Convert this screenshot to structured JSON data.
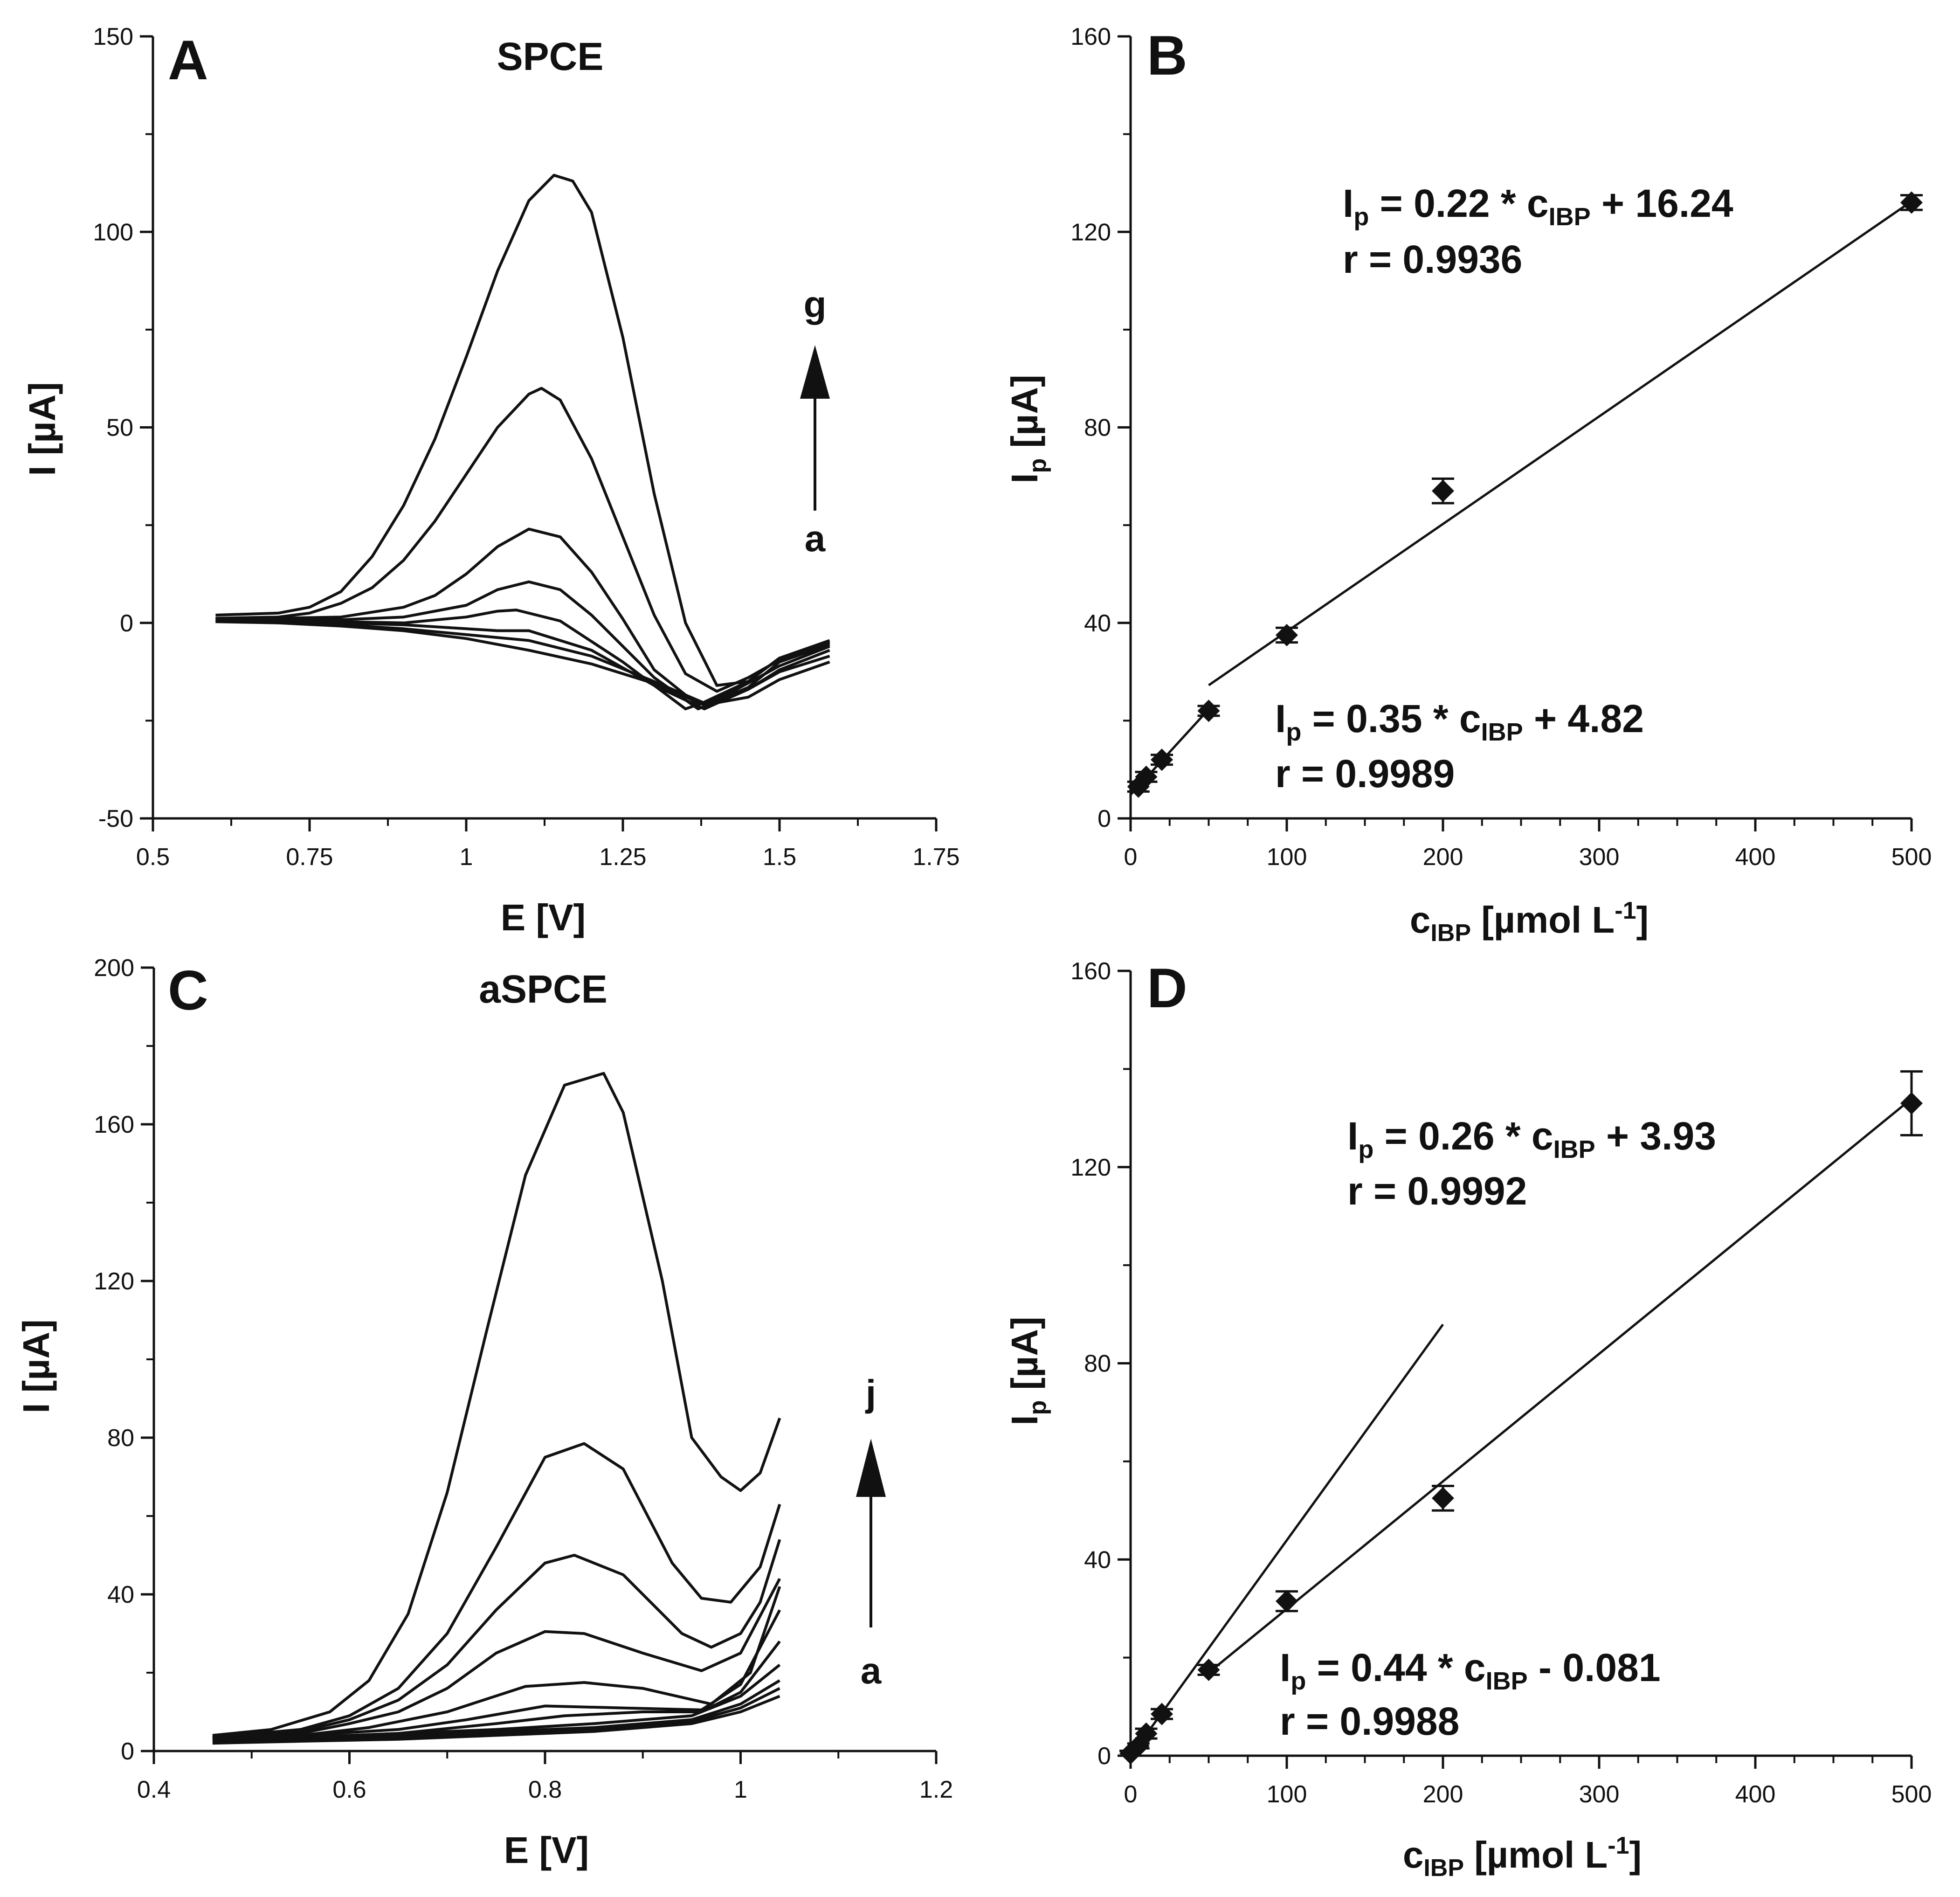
{
  "chart_data": [
    {
      "panel": "A",
      "type": "line",
      "title": "SPCE",
      "xlabel": "E [V]",
      "ylabel": "I [µA]",
      "xlim": [
        0.5,
        1.75
      ],
      "ylim": [
        -50,
        150
      ],
      "xticks": [
        "0.5",
        "0.75",
        "1",
        "1.25",
        "1.5",
        "1.75"
      ],
      "yticks": [
        "-50",
        "0",
        "50",
        "100",
        "150"
      ],
      "arrow": {
        "from": "a",
        "to": "g"
      },
      "series": [
        {
          "x": [
            0.6,
            0.7,
            0.8,
            0.9,
            1.0,
            1.1,
            1.2,
            1.3,
            1.38,
            1.45,
            1.5,
            1.58
          ],
          "values": [
            0.3,
            0,
            -0.8,
            -2,
            -4,
            -7,
            -10.5,
            -15.5,
            -21,
            -19,
            -14.5,
            -10
          ]
        },
        {
          "x": [
            0.6,
            0.7,
            0.8,
            0.9,
            1.0,
            1.1,
            1.2,
            1.3,
            1.38,
            1.45,
            1.5,
            1.58
          ],
          "values": [
            0.4,
            0,
            -0.5,
            -1.5,
            -3,
            -4.5,
            -8.5,
            -15,
            -20.5,
            -17,
            -12.5,
            -8.5
          ]
        },
        {
          "x": [
            0.6,
            0.7,
            0.8,
            0.9,
            1.0,
            1.05,
            1.1,
            1.2,
            1.3,
            1.38,
            1.45,
            1.5,
            1.58
          ],
          "values": [
            0.6,
            0.5,
            0,
            -0.5,
            -1.5,
            -2,
            -2,
            -7,
            -16,
            -22,
            -17,
            -12,
            -7
          ]
        },
        {
          "x": [
            0.6,
            0.7,
            0.8,
            0.9,
            1.0,
            1.05,
            1.08,
            1.15,
            1.25,
            1.35,
            1.42,
            1.5,
            1.58
          ],
          "values": [
            0.8,
            0.6,
            0.3,
            0,
            1.5,
            3,
            3.3,
            0.5,
            -10,
            -22,
            -18,
            -11,
            -6
          ]
        },
        {
          "x": [
            0.6,
            0.7,
            0.8,
            0.9,
            1.0,
            1.05,
            1.1,
            1.15,
            1.2,
            1.3,
            1.37,
            1.45,
            1.5,
            1.58
          ],
          "values": [
            0.9,
            0.8,
            0.8,
            1.5,
            4.5,
            8.5,
            10.5,
            8.5,
            2,
            -14,
            -22,
            -16.5,
            -10,
            -5.5
          ]
        },
        {
          "x": [
            0.6,
            0.7,
            0.8,
            0.9,
            0.95,
            1.0,
            1.05,
            1.1,
            1.15,
            1.2,
            1.25,
            1.3,
            1.37,
            1.45,
            1.5,
            1.58
          ],
          "values": [
            1,
            1.2,
            1.5,
            4,
            7,
            12.5,
            19.5,
            24,
            22,
            13,
            1,
            -12,
            -21,
            -15,
            -9,
            -5
          ]
        },
        {
          "x": [
            0.6,
            0.7,
            0.75,
            0.8,
            0.85,
            0.9,
            0.95,
            1.0,
            1.05,
            1.1,
            1.12,
            1.15,
            1.2,
            1.25,
            1.3,
            1.35,
            1.4,
            1.45,
            1.5,
            1.58
          ],
          "values": [
            1.2,
            1.5,
            2.5,
            5,
            9,
            16,
            26,
            38,
            50,
            58.5,
            60,
            57,
            42,
            22,
            2,
            -13,
            -17.5,
            -14,
            -9.5,
            -5
          ]
        },
        {
          "x": [
            0.6,
            0.7,
            0.75,
            0.8,
            0.85,
            0.9,
            0.95,
            1.0,
            1.05,
            1.1,
            1.14,
            1.17,
            1.2,
            1.25,
            1.3,
            1.35,
            1.4,
            1.45,
            1.5,
            1.58
          ],
          "values": [
            2,
            2.5,
            4,
            8,
            17,
            30,
            47,
            68,
            90,
            108,
            114.5,
            113,
            105,
            73,
            33,
            0,
            -16,
            -15,
            -9,
            -4.5
          ]
        }
      ]
    },
    {
      "panel": "B",
      "type": "scatter",
      "xlabel": "cIBP [µmol L-1]",
      "ylabel": "Ip [µA]",
      "xlim": [
        0,
        500
      ],
      "ylim": [
        0,
        160
      ],
      "xticks": [
        "0",
        "100",
        "200",
        "300",
        "400",
        "500"
      ],
      "yticks": [
        "0",
        "40",
        "80",
        "120",
        "160"
      ],
      "points": {
        "x": [
          5,
          10,
          20,
          50,
          100,
          200,
          500
        ],
        "values": [
          6.5,
          8.5,
          12,
          22,
          37.5,
          67,
          126
        ],
        "errors": [
          1,
          1,
          1,
          1,
          1.5,
          2.5,
          1.5
        ]
      },
      "fits": [
        {
          "slope": 0.35,
          "intercept": 4.82,
          "x_range": [
            0,
            50
          ]
        },
        {
          "slope": 0.22,
          "intercept": 16.24,
          "x_range": [
            50,
            500
          ]
        }
      ],
      "annotations": [
        {
          "line1_pre": "I",
          "line1_sub": "p",
          "line1_mid": " = 0.22 * c",
          "line1_sub2": "IBP",
          "line1_post": " + 16.24",
          "line2": "r = 0.9936"
        },
        {
          "line1_pre": "I",
          "line1_sub": "p",
          "line1_mid": " = 0.35 * c",
          "line1_sub2": "IBP",
          "line1_post": " + 4.82",
          "line2": "r = 0.9989"
        }
      ]
    },
    {
      "panel": "C",
      "type": "line",
      "title": "aSPCE",
      "xlabel": "E [V]",
      "ylabel": "I [µA]",
      "xlim": [
        0.4,
        1.2
      ],
      "ylim": [
        0,
        200
      ],
      "xticks": [
        "0.4",
        "0.6",
        "0.8",
        "1",
        "1.2"
      ],
      "yticks": [
        "0",
        "40",
        "80",
        "120",
        "160",
        "200"
      ],
      "arrow": {
        "from": "a",
        "to": "j"
      },
      "series": [
        {
          "x": [
            0.46,
            0.55,
            0.65,
            0.75,
            0.85,
            0.95,
            1.0,
            1.04
          ],
          "values": [
            2,
            2.5,
            3,
            4,
            5,
            7,
            10,
            14
          ]
        },
        {
          "x": [
            0.46,
            0.55,
            0.65,
            0.75,
            0.85,
            0.95,
            1.0,
            1.04
          ],
          "values": [
            2.5,
            3,
            3.5,
            4.5,
            5.5,
            7.5,
            11,
            16
          ]
        },
        {
          "x": [
            0.46,
            0.55,
            0.65,
            0.75,
            0.85,
            0.95,
            1.0,
            1.04
          ],
          "values": [
            3,
            3.5,
            4,
            5,
            6,
            8,
            12,
            18
          ]
        },
        {
          "x": [
            0.46,
            0.55,
            0.65,
            0.75,
            0.85,
            0.95,
            1.0,
            1.04
          ],
          "values": [
            3,
            3.5,
            4.5,
            5.5,
            7,
            9,
            14,
            22
          ]
        },
        {
          "x": [
            0.46,
            0.55,
            0.65,
            0.75,
            0.82,
            0.9,
            0.96,
            1.0,
            1.04
          ],
          "values": [
            3,
            3.5,
            4.5,
            7,
            9,
            10,
            10,
            15,
            28
          ]
        },
        {
          "x": [
            0.46,
            0.55,
            0.65,
            0.72,
            0.8,
            0.88,
            0.96,
            1.0,
            1.04
          ],
          "values": [
            3,
            4,
            5.5,
            8,
            11.5,
            11,
            10.5,
            17,
            36
          ]
        },
        {
          "x": [
            0.46,
            0.55,
            0.62,
            0.7,
            0.78,
            0.84,
            0.9,
            0.97,
            1.01,
            1.04
          ],
          "values": [
            3,
            4,
            6,
            10,
            16.5,
            17.5,
            16,
            12,
            20,
            42
          ]
        },
        {
          "x": [
            0.46,
            0.55,
            0.6,
            0.65,
            0.7,
            0.75,
            0.8,
            0.84,
            0.9,
            0.96,
            1.0,
            1.04
          ],
          "values": [
            3.5,
            4.5,
            7,
            10,
            16,
            25,
            30.5,
            30,
            25,
            20.5,
            25,
            44
          ]
        },
        {
          "x": [
            0.46,
            0.55,
            0.6,
            0.65,
            0.7,
            0.75,
            0.8,
            0.83,
            0.88,
            0.94,
            0.97,
            1.0,
            1.02,
            1.04
          ],
          "values": [
            3.5,
            5,
            8,
            13,
            22,
            36,
            48,
            50,
            45,
            30,
            26.5,
            30,
            38,
            54
          ]
        },
        {
          "x": [
            0.46,
            0.55,
            0.6,
            0.65,
            0.7,
            0.75,
            0.8,
            0.84,
            0.88,
            0.93,
            0.96,
            0.99,
            1.02,
            1.04
          ],
          "values": [
            3.5,
            5.5,
            9,
            16,
            30,
            52,
            75,
            78.5,
            72,
            48,
            39,
            38,
            47,
            63
          ]
        },
        {
          "x": [
            0.46,
            0.52,
            0.58,
            0.62,
            0.66,
            0.7,
            0.74,
            0.78,
            0.82,
            0.86,
            0.88,
            0.92,
            0.95,
            0.98,
            1.0,
            1.02,
            1.04
          ],
          "values": [
            4,
            5.5,
            10,
            18,
            35,
            66,
            107,
            147,
            170,
            173,
            163,
            120,
            80,
            70,
            66.5,
            71,
            85
          ]
        }
      ]
    },
    {
      "panel": "D",
      "type": "scatter",
      "xlabel": "cIBP [µmol L-1]",
      "ylabel": "Ip [µA]",
      "xlim": [
        0,
        500
      ],
      "ylim": [
        0,
        160
      ],
      "xticks": [
        "0",
        "100",
        "200",
        "300",
        "400",
        "500"
      ],
      "yticks": [
        "0",
        "40",
        "80",
        "120",
        "160"
      ],
      "points": {
        "x": [
          0,
          5,
          10,
          20,
          50,
          100,
          200,
          500
        ],
        "values": [
          0.5,
          2,
          4.5,
          8.5,
          17.5,
          31.5,
          52.5,
          133
        ],
        "errors": [
          0.5,
          0.5,
          1,
          1,
          1,
          2,
          2.5,
          6.5
        ]
      },
      "fits": [
        {
          "slope": 0.44,
          "intercept": -0.081,
          "x_range": [
            0,
            200
          ]
        },
        {
          "slope": 0.26,
          "intercept": 3.93,
          "x_range": [
            50,
            500
          ]
        }
      ],
      "annotations": [
        {
          "line1_pre": "I",
          "line1_sub": "p",
          "line1_mid": " = 0.26 * c",
          "line1_sub2": "IBP",
          "line1_post": " + 3.93",
          "line2": "r = 0.9992"
        },
        {
          "line1_pre": "I",
          "line1_sub": "p",
          "line1_mid": " = 0.44 * c",
          "line1_sub2": "IBP",
          "line1_post": " - 0.081",
          "line2": "r = 0.9988"
        }
      ]
    }
  ],
  "panels": {
    "a": {
      "letter": "A",
      "title": "SPCE",
      "xlabel": "E [V]",
      "ylabel": "I [µA]",
      "arrow_top": "g",
      "arrow_bottom": "a"
    },
    "b": {
      "letter": "B",
      "xlabel_main": "c",
      "xlabel_sub": "IBP",
      "xlabel_rest": " [µmol L",
      "xlabel_sup": "-1",
      "xlabel_end": "]",
      "ylabel_main": "I",
      "ylabel_sub": "p",
      "ylabel_rest": " [µA]"
    },
    "c": {
      "letter": "C",
      "title": "aSPCE",
      "xlabel": "E [V]",
      "ylabel": "I [µA]",
      "arrow_top": "j",
      "arrow_bottom": "a"
    },
    "d": {
      "letter": "D",
      "xlabel_main": "c",
      "xlabel_sub": "IBP",
      "xlabel_rest": " [µmol L",
      "xlabel_sup": "-1",
      "xlabel_end": "]",
      "ylabel_main": "I",
      "ylabel_sub": "p",
      "ylabel_rest": " [µA]"
    }
  }
}
